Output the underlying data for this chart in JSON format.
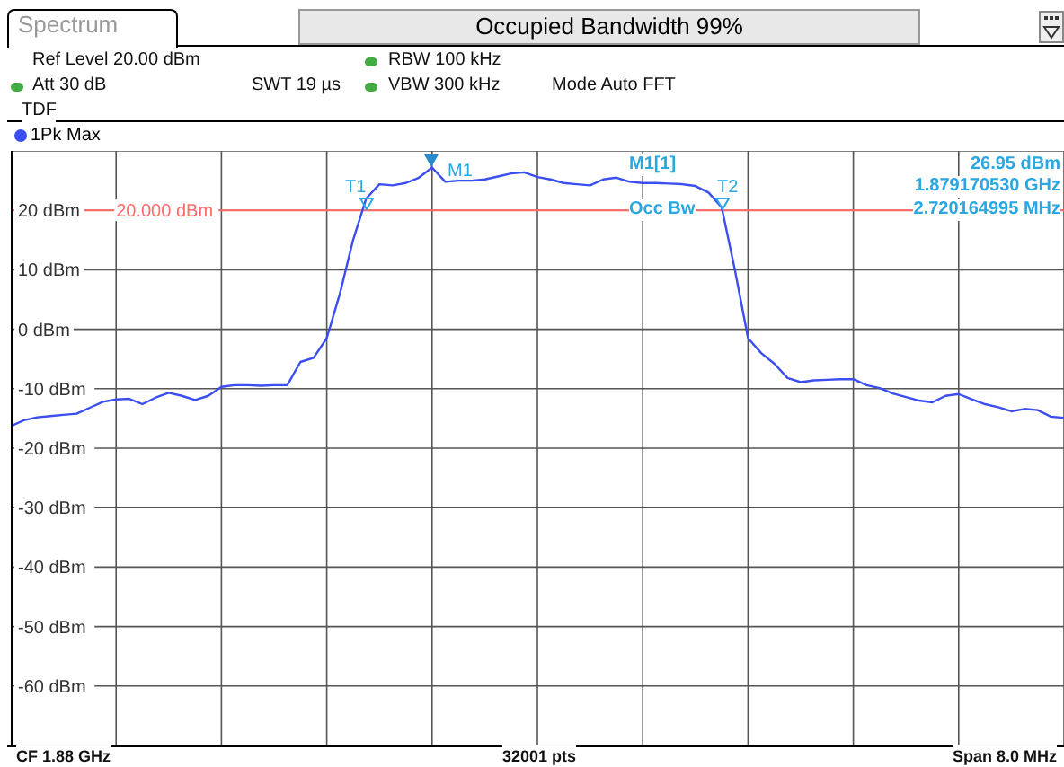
{
  "chart_data": {
    "type": "line",
    "title": "Occupied Bandwidth 99%",
    "categories": [
      null,
      null,
      null,
      null,
      null,
      null,
      null,
      null,
      null,
      null,
      null,
      null,
      null,
      null,
      null,
      null,
      null,
      null,
      null,
      null,
      null,
      null,
      null,
      null,
      null,
      null,
      null,
      null,
      null,
      null,
      null,
      null,
      null,
      null,
      null,
      null,
      null,
      null,
      null,
      null,
      null,
      null,
      null,
      null,
      null,
      null,
      null,
      null,
      null,
      null,
      null,
      null,
      null,
      null,
      null,
      null,
      null,
      null,
      null,
      null,
      null,
      null,
      null,
      null,
      null,
      null,
      null,
      null,
      null,
      null,
      null,
      null,
      null,
      null,
      null,
      null,
      null,
      null,
      null,
      null,
      null
    ],
    "series": [
      {
        "name": "1Pk Max",
        "color": "#3b4ff0",
        "values": [
          -16.3,
          -15.3,
          -14.8,
          -14.6,
          -14.4,
          -14.2,
          -13.2,
          -12.2,
          -11.8,
          -11.7,
          -12.6,
          -11.5,
          -10.7,
          -11.2,
          -11.9,
          -11.2,
          -9.7,
          -9.4,
          -9.4,
          -9.5,
          -9.4,
          -9.4,
          -5.5,
          -4.8,
          -1.5,
          6,
          15,
          22,
          24.4,
          24.2,
          24.6,
          25.5,
          27.2,
          24.8,
          25,
          25,
          25.2,
          25.7,
          26.2,
          26.4,
          25.6,
          25.2,
          24.6,
          24.4,
          24.2,
          25.2,
          25.5,
          24.8,
          24.6,
          24.6,
          24.5,
          24.4,
          24.1,
          23,
          20.5,
          10,
          -1.5,
          -4,
          -5.8,
          -8.2,
          -8.9,
          -8.6,
          -8.5,
          -8.4,
          -8.4,
          -9.4,
          -9.9,
          -10.8,
          -11.4,
          -12,
          -12.3,
          -11.2,
          -10.9,
          -11.8,
          -12.6,
          -13.1,
          -13.8,
          -13.4,
          -13.6,
          -14.7,
          -14.9
        ]
      }
    ],
    "ylim": [
      -70,
      30
    ],
    "yticks": [
      {
        "value": -60,
        "label": "-60 dBm"
      },
      {
        "value": -50,
        "label": "-50 dBm"
      },
      {
        "value": -40,
        "label": "-40 dBm"
      },
      {
        "value": -30,
        "label": "-30 dBm"
      },
      {
        "value": -20,
        "label": "-20 dBm"
      },
      {
        "value": -10,
        "label": "-10 dBm"
      },
      {
        "value": 0,
        "label": "0 dBm"
      },
      {
        "value": 10,
        "label": "10 dBm"
      },
      {
        "value": 20,
        "label": "20 dBm"
      }
    ],
    "ref_lines": [
      {
        "axis": "y",
        "value": 20,
        "label": "20.000 dBm",
        "color": "#ff6a6a"
      }
    ],
    "grid": true,
    "legend": "top left",
    "annotations": [
      "Spectrum",
      "Ref Level 20.00 dBm",
      "Att 30 dB",
      "SWT 19 µs",
      "RBW 100 kHz",
      "VBW 300 kHz",
      "Mode Auto FFT",
      "TDF",
      "M1",
      "T1",
      "T2",
      "M1[1]",
      "26.95 dBm",
      "1.879170530 GHz",
      "Occ Bw",
      "2.720164995 MHz",
      "CF 1.88 GHz",
      "32001 pts",
      "Span 8.0 MHz"
    ]
  }
}
